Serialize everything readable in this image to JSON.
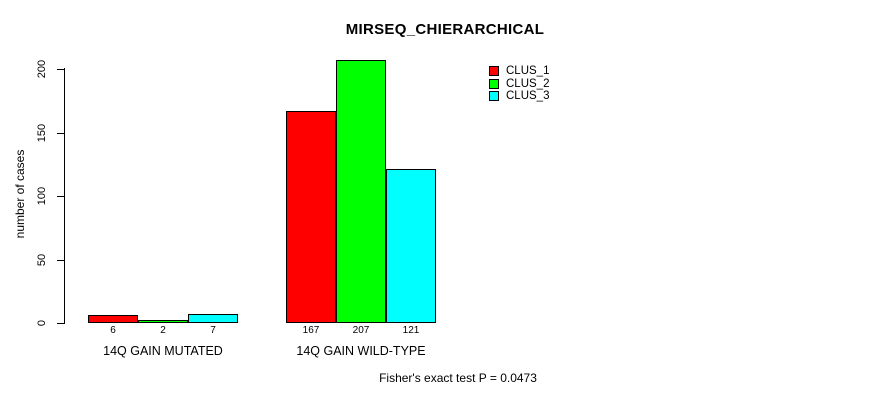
{
  "chart_data": {
    "type": "bar",
    "title": "MIRSEQ_CHIERARCHICAL",
    "xlabel": "",
    "ylabel": "number of cases",
    "categories": [
      "14Q GAIN MUTATED",
      "14Q GAIN WILD-TYPE"
    ],
    "series": [
      {
        "name": "CLUS_1",
        "color": "#FF0000",
        "values": [
          6,
          167
        ]
      },
      {
        "name": "CLUS_2",
        "color": "#00FF00",
        "values": [
          2,
          207
        ]
      },
      {
        "name": "CLUS_3",
        "color": "#00FFFF",
        "values": [
          7,
          121
        ]
      }
    ],
    "bar_labels": [
      [
        "6",
        "2",
        "7"
      ],
      [
        "167",
        "207",
        "121"
      ]
    ],
    "ylim": [
      0,
      200
    ],
    "yticks": [
      "0",
      "50",
      "100",
      "150",
      "200"
    ],
    "grid": false,
    "legend_position": "top-right",
    "annotation": "Fisher's exact test P = 0.0473"
  }
}
